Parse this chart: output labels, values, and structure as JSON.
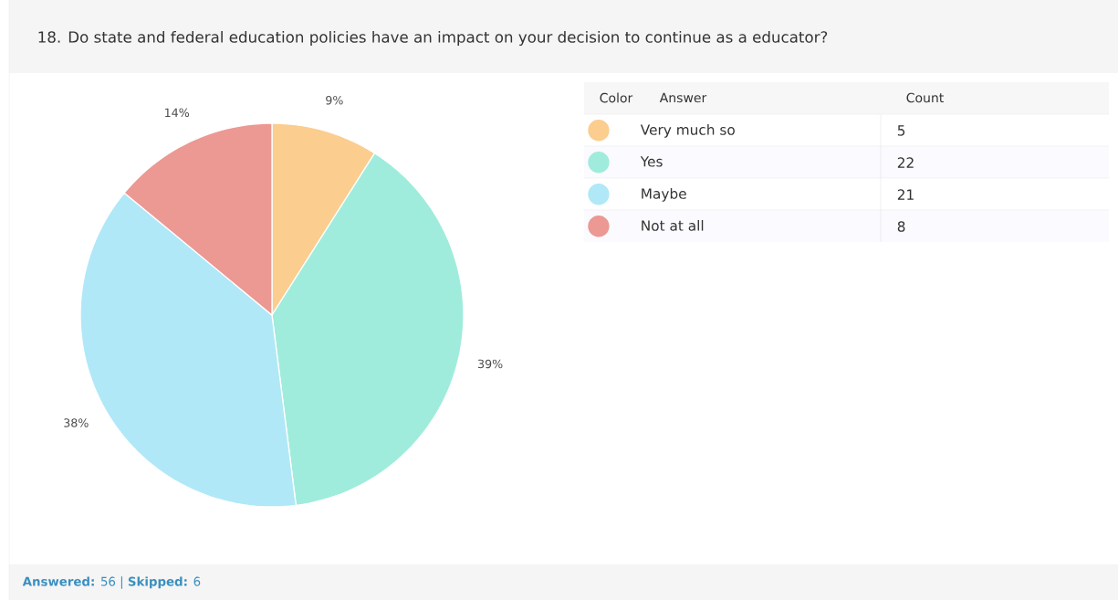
{
  "chart_data": [
    {
      "type": "pie",
      "title": "18. Do state and federal education policies have an impact on your decision to continue as a educator?",
      "categories": [
        "Very much so",
        "Yes",
        "Maybe",
        "Not at all"
      ],
      "values": [
        9,
        39,
        38,
        14
      ],
      "colors": [
        "#fbcd8e",
        "#a0ecdc",
        "#b0e8f8",
        "#ec9893"
      ],
      "value_labels": [
        "9%",
        "39%",
        "38%",
        "14%"
      ],
      "legend": "top right",
      "annotations": [
        "**Answered:** 56 | **Skipped:** 6"
      ]
    },
    {
      "type": "other",
      "values": [
        5,
        22,
        21,
        8
      ],
      "data_labels": true,
      "annotations": [
        "Color",
        "Answer",
        "Count"
      ]
    }
  ]
}
